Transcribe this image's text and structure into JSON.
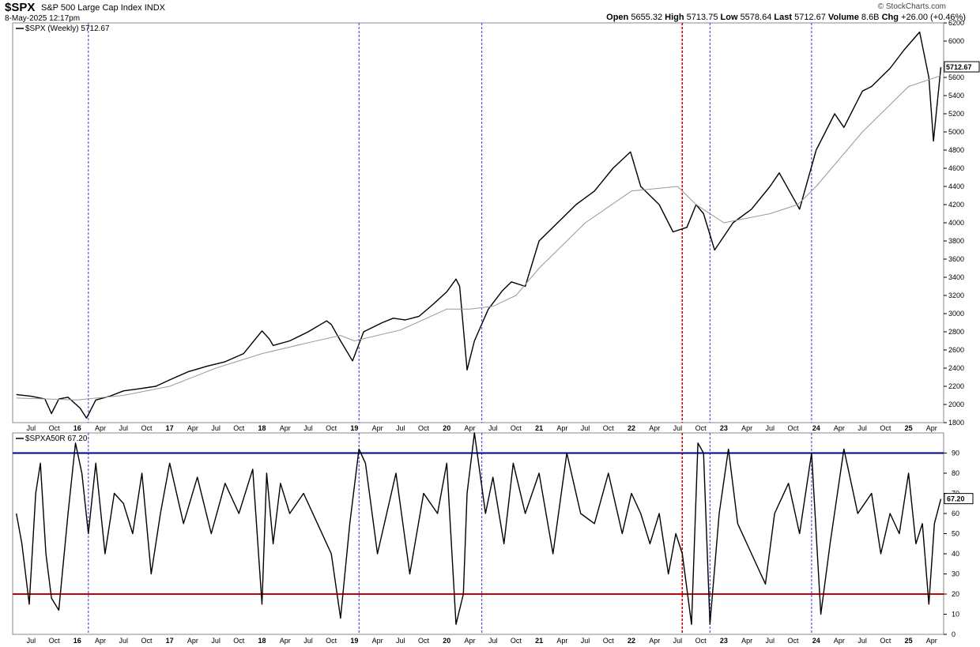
{
  "header": {
    "symbol": "$SPX",
    "name": "S&P 500 Large Cap Index",
    "exchange": "INDX",
    "date": "8-May-2025 12:17pm",
    "brand": "© StockCharts.com",
    "open_label": "Open",
    "open": "5655.32",
    "high_label": "High",
    "high": "5713.75",
    "low_label": "Low",
    "low": "5578.64",
    "last_label": "Last",
    "last": "5712.67",
    "volume_label": "Volume",
    "volume": "8.6B",
    "chg_label": "Chg",
    "chg": "+26.00 (+0.46%)"
  },
  "colors": {
    "price": "#000000",
    "ma": "#999999",
    "upper_line": "#00008b",
    "lower_line": "#cc0000",
    "blue_marker": "#3333dd",
    "red_marker": "#cc0000",
    "grid": "#dddddd"
  },
  "chart_data": [
    {
      "type": "line",
      "legend": "$SPX (Weekly) 5712.67",
      "last_label": "5712.67",
      "ylim": [
        1800,
        6200
      ],
      "y_ticks": [
        1800,
        2000,
        2200,
        2400,
        2600,
        2800,
        3000,
        3200,
        3400,
        3600,
        3800,
        4000,
        4200,
        4400,
        4600,
        4800,
        5000,
        5200,
        5400,
        5600,
        6000,
        6200
      ],
      "x_ticks": [
        "Jul",
        "Oct",
        "16",
        "Apr",
        "Jul",
        "Oct",
        "17",
        "Apr",
        "Jul",
        "Oct",
        "18",
        "Apr",
        "Jul",
        "Oct",
        "19",
        "Apr",
        "Jul",
        "Oct",
        "20",
        "Apr",
        "Jul",
        "Oct",
        "21",
        "Apr",
        "Jul",
        "Oct",
        "22",
        "Apr",
        "Jul",
        "Oct",
        "23",
        "Apr",
        "Jul",
        "Oct",
        "24",
        "Apr",
        "Jul",
        "Oct",
        "25",
        "Apr"
      ],
      "x_tick_dates": [
        2015.5,
        2015.75,
        2016,
        2016.25,
        2016.5,
        2016.75,
        2017,
        2017.25,
        2017.5,
        2017.75,
        2018,
        2018.25,
        2018.5,
        2018.75,
        2019,
        2019.25,
        2019.5,
        2019.75,
        2020,
        2020.25,
        2020.5,
        2020.75,
        2021,
        2021.25,
        2021.5,
        2021.75,
        2022,
        2022.25,
        2022.5,
        2022.75,
        2023,
        2023.25,
        2023.5,
        2023.75,
        2024,
        2024.25,
        2024.5,
        2024.75,
        2025,
        2025.25
      ],
      "series": [
        {
          "style": "price",
          "x": [
            2015.34,
            2015.5,
            2015.65,
            2015.72,
            2015.8,
            2015.9,
            2016.03,
            2016.1,
            2016.2,
            2016.35,
            2016.5,
            2016.65,
            2016.85,
            2017.0,
            2017.2,
            2017.4,
            2017.6,
            2017.8,
            2018.0,
            2018.08,
            2018.12,
            2018.3,
            2018.5,
            2018.7,
            2018.75,
            2018.85,
            2018.98,
            2019.1,
            2019.3,
            2019.42,
            2019.55,
            2019.7,
            2019.85,
            2020.0,
            2020.1,
            2020.14,
            2020.22,
            2020.3,
            2020.45,
            2020.6,
            2020.7,
            2020.85,
            2021.0,
            2021.2,
            2021.4,
            2021.6,
            2021.8,
            2021.99,
            2022.1,
            2022.3,
            2022.45,
            2022.6,
            2022.7,
            2022.78,
            2022.9,
            2023.1,
            2023.3,
            2023.5,
            2023.6,
            2023.82,
            2024.0,
            2024.2,
            2024.3,
            2024.5,
            2024.6,
            2024.8,
            2024.95,
            2025.12,
            2025.22,
            2025.27,
            2025.35
          ],
          "y": [
            2110,
            2090,
            2060,
            1900,
            2060,
            2080,
            1960,
            1850,
            2050,
            2090,
            2150,
            2170,
            2200,
            2270,
            2360,
            2420,
            2470,
            2560,
            2810,
            2720,
            2650,
            2700,
            2800,
            2920,
            2880,
            2700,
            2480,
            2800,
            2900,
            2950,
            2930,
            2970,
            3100,
            3240,
            3380,
            3300,
            2380,
            2700,
            3050,
            3250,
            3350,
            3300,
            3800,
            4000,
            4200,
            4350,
            4600,
            4780,
            4400,
            4200,
            3900,
            3950,
            4200,
            4100,
            3700,
            4000,
            4150,
            4400,
            4550,
            4150,
            4800,
            5200,
            5050,
            5450,
            5500,
            5700,
            5900,
            6100,
            5600,
            4900,
            5712.67
          ]
        },
        {
          "style": "ma",
          "x": [
            2015.34,
            2016.0,
            2016.5,
            2017.0,
            2017.5,
            2018.0,
            2018.5,
            2018.85,
            2019.0,
            2019.5,
            2020.0,
            2020.25,
            2020.5,
            2020.75,
            2021.0,
            2021.5,
            2022.0,
            2022.5,
            2022.7,
            2023.0,
            2023.5,
            2023.8,
            2024.0,
            2024.5,
            2025.0,
            2025.35
          ],
          "y": [
            2070,
            2050,
            2100,
            2200,
            2400,
            2560,
            2680,
            2760,
            2700,
            2820,
            3050,
            3050,
            3080,
            3200,
            3500,
            4000,
            4350,
            4400,
            4200,
            4000,
            4100,
            4200,
            4400,
            5000,
            5500,
            5620
          ]
        }
      ]
    },
    {
      "type": "line",
      "legend": "$SPXA50R 67.20",
      "last_label": "67.20",
      "ylim": [
        0,
        100
      ],
      "y_ticks": [
        0,
        10,
        20,
        30,
        40,
        50,
        60,
        70,
        80,
        90
      ],
      "hlines": [
        90,
        20
      ],
      "x": [
        2015.34,
        2015.4,
        2015.48,
        2015.55,
        2015.6,
        2015.66,
        2015.72,
        2015.8,
        2015.9,
        2015.98,
        2016.05,
        2016.12,
        2016.2,
        2016.3,
        2016.4,
        2016.5,
        2016.6,
        2016.7,
        2016.8,
        2016.9,
        2017.0,
        2017.15,
        2017.3,
        2017.45,
        2017.6,
        2017.75,
        2017.9,
        2018.0,
        2018.05,
        2018.12,
        2018.2,
        2018.3,
        2018.45,
        2018.6,
        2018.75,
        2018.85,
        2018.95,
        2019.05,
        2019.12,
        2019.25,
        2019.35,
        2019.45,
        2019.6,
        2019.75,
        2019.9,
        2020.0,
        2020.1,
        2020.18,
        2020.22,
        2020.3,
        2020.42,
        2020.5,
        2020.62,
        2020.72,
        2020.85,
        2021.0,
        2021.15,
        2021.3,
        2021.45,
        2021.6,
        2021.75,
        2021.9,
        2022.0,
        2022.1,
        2022.2,
        2022.3,
        2022.4,
        2022.48,
        2022.55,
        2022.65,
        2022.72,
        2022.78,
        2022.85,
        2022.95,
        2023.05,
        2023.15,
        2023.3,
        2023.45,
        2023.55,
        2023.7,
        2023.82,
        2023.95,
        2024.05,
        2024.15,
        2024.3,
        2024.45,
        2024.6,
        2024.7,
        2024.8,
        2024.9,
        2025.0,
        2025.08,
        2025.15,
        2025.22,
        2025.28,
        2025.35
      ],
      "y": [
        60,
        45,
        15,
        70,
        85,
        40,
        18,
        12,
        60,
        95,
        80,
        50,
        85,
        40,
        70,
        65,
        50,
        80,
        30,
        60,
        85,
        55,
        78,
        50,
        75,
        60,
        82,
        15,
        80,
        45,
        75,
        60,
        70,
        55,
        40,
        8,
        55,
        92,
        85,
        40,
        60,
        80,
        30,
        70,
        60,
        85,
        5,
        20,
        70,
        100,
        60,
        78,
        45,
        85,
        60,
        80,
        40,
        90,
        60,
        55,
        80,
        50,
        70,
        60,
        45,
        60,
        30,
        50,
        40,
        5,
        95,
        90,
        5,
        60,
        92,
        55,
        40,
        25,
        60,
        75,
        50,
        90,
        10,
        45,
        92,
        60,
        70,
        40,
        60,
        50,
        80,
        45,
        55,
        15,
        55,
        67.2
      ]
    }
  ],
  "vlines": [
    {
      "x": 2016.12,
      "color": "blue"
    },
    {
      "x": 2019.05,
      "color": "blue"
    },
    {
      "x": 2020.38,
      "color": "blue"
    },
    {
      "x": 2022.55,
      "color": "red"
    },
    {
      "x": 2022.85,
      "color": "blue"
    },
    {
      "x": 2023.95,
      "color": "blue"
    }
  ]
}
